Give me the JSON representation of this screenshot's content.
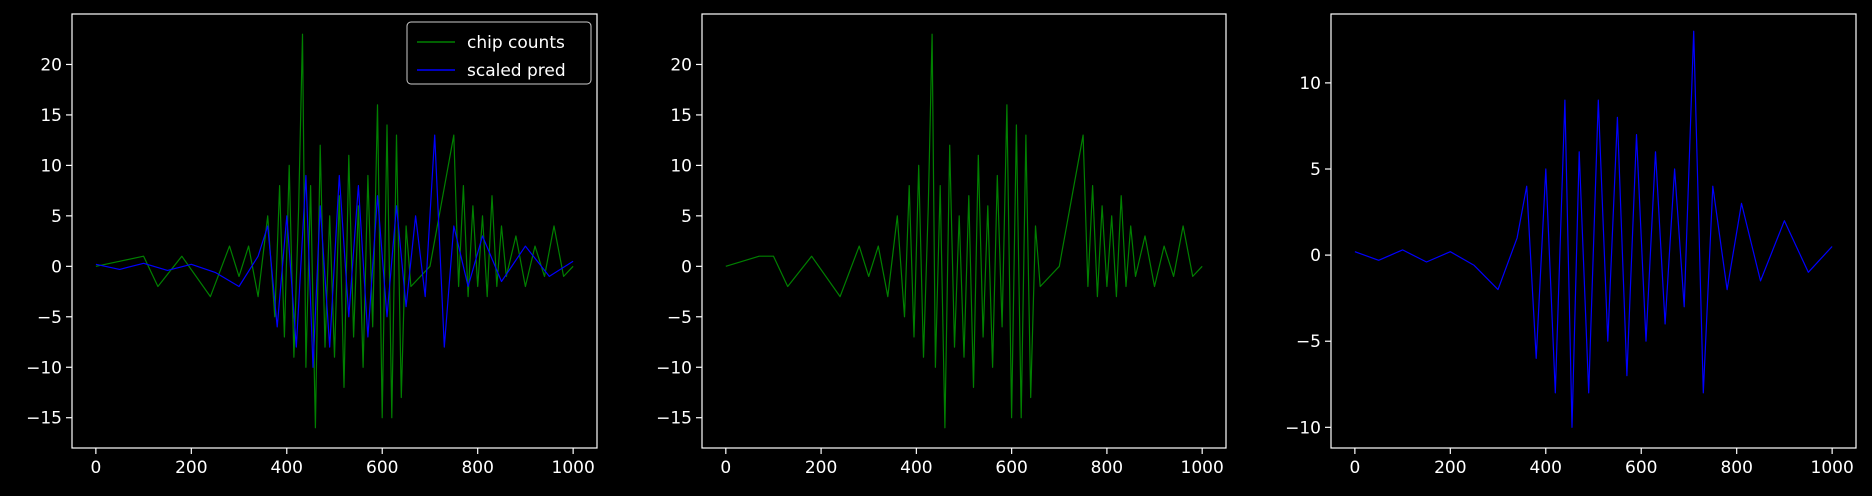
{
  "figure": {
    "background": "#000000",
    "foreground": "#ffffff"
  },
  "legend": {
    "location": "top-right",
    "entries": [
      {
        "label": "chip counts",
        "color": "#008000"
      },
      {
        "label": "scaled pred",
        "color": "#0000ff"
      }
    ]
  },
  "chart_data": [
    {
      "type": "line",
      "title": "",
      "xlabel": "",
      "ylabel": "",
      "xlim": [
        -50,
        1050
      ],
      "ylim": [
        -18,
        25
      ],
      "xticks": [
        0,
        200,
        400,
        600,
        800,
        1000
      ],
      "yticks": [
        -15,
        -10,
        -5,
        0,
        5,
        10,
        15,
        20
      ],
      "ytick_labels": [
        "−15",
        "−10",
        "−5",
        "0",
        "5",
        "10",
        "15",
        "20"
      ],
      "grid": false,
      "legend": true,
      "series": [
        {
          "name": "chip counts",
          "color": "#008000",
          "x": [
            0,
            100,
            130,
            180,
            240,
            280,
            300,
            320,
            340,
            360,
            375,
            385,
            395,
            405,
            415,
            425,
            433,
            440,
            450,
            460,
            470,
            480,
            490,
            500,
            510,
            520,
            530,
            540,
            550,
            560,
            570,
            580,
            590,
            600,
            610,
            620,
            630,
            640,
            650,
            660,
            700,
            750,
            760,
            770,
            780,
            790,
            800,
            810,
            820,
            830,
            840,
            850,
            860,
            880,
            900,
            920,
            940,
            960,
            980,
            1000
          ],
          "y": [
            0,
            1,
            -2,
            1,
            -3,
            2,
            -1,
            2,
            -3,
            5,
            -5,
            8,
            -7,
            10,
            -9,
            6,
            23,
            -10,
            8,
            -16,
            12,
            -8,
            5,
            -9,
            7,
            -12,
            11,
            -7,
            6,
            -10,
            9,
            -6,
            16,
            -15,
            14,
            -15,
            13,
            -13,
            4,
            -2,
            0,
            13,
            -2,
            8,
            -3,
            6,
            -2,
            5,
            -3,
            7,
            -2,
            4,
            -1,
            3,
            -2,
            2,
            -1,
            4,
            -1,
            0
          ]
        },
        {
          "name": "scaled pred",
          "color": "#0000ff",
          "x": [
            0,
            50,
            100,
            150,
            200,
            250,
            300,
            340,
            360,
            380,
            400,
            420,
            440,
            455,
            470,
            490,
            510,
            530,
            550,
            570,
            590,
            610,
            630,
            650,
            670,
            690,
            710,
            730,
            750,
            780,
            810,
            850,
            900,
            950,
            1000
          ],
          "y": [
            0.2,
            -0.3,
            0.3,
            -0.4,
            0.2,
            -0.6,
            -2,
            1,
            4,
            -6,
            5,
            -8,
            9,
            -10,
            6,
            -8,
            9,
            -5,
            8,
            -7,
            7,
            -5,
            6,
            -4,
            5,
            -3,
            13,
            -8,
            4,
            -2,
            3,
            -1.5,
            2,
            -1,
            0.5
          ]
        }
      ]
    },
    {
      "type": "line",
      "title": "",
      "xlabel": "",
      "ylabel": "",
      "xlim": [
        -50,
        1050
      ],
      "ylim": [
        -18,
        25
      ],
      "xticks": [
        0,
        200,
        400,
        600,
        800,
        1000
      ],
      "yticks": [
        -15,
        -10,
        -5,
        0,
        5,
        10,
        15,
        20
      ],
      "ytick_labels": [
        "−15",
        "−10",
        "−5",
        "0",
        "5",
        "10",
        "15",
        "20"
      ],
      "grid": false,
      "legend": false,
      "series": [
        {
          "color": "#008000",
          "x": [
            0,
            70,
            100,
            130,
            180,
            240,
            280,
            300,
            320,
            340,
            360,
            375,
            385,
            395,
            405,
            415,
            425,
            433,
            440,
            450,
            460,
            470,
            480,
            490,
            500,
            510,
            520,
            530,
            540,
            550,
            560,
            570,
            580,
            590,
            600,
            610,
            620,
            630,
            640,
            650,
            660,
            700,
            750,
            760,
            770,
            780,
            790,
            800,
            810,
            820,
            830,
            840,
            850,
            860,
            880,
            900,
            920,
            940,
            960,
            980,
            1000
          ],
          "y": [
            0,
            1,
            1,
            -2,
            1,
            -3,
            2,
            -1,
            2,
            -3,
            5,
            -5,
            8,
            -7,
            10,
            -9,
            6,
            23,
            -10,
            8,
            -16,
            12,
            -8,
            5,
            -9,
            7,
            -12,
            11,
            -7,
            6,
            -10,
            9,
            -6,
            16,
            -15,
            14,
            -15,
            13,
            -13,
            4,
            -2,
            0,
            13,
            -2,
            8,
            -3,
            6,
            -2,
            5,
            -3,
            7,
            -2,
            4,
            -1,
            3,
            -2,
            2,
            -1,
            4,
            -1,
            0
          ]
        }
      ]
    },
    {
      "type": "line",
      "title": "",
      "xlabel": "",
      "ylabel": "",
      "xlim": [
        -50,
        1050
      ],
      "ylim": [
        -11.2,
        14
      ],
      "xticks": [
        0,
        200,
        400,
        600,
        800,
        1000
      ],
      "yticks": [
        -10,
        -5,
        0,
        5,
        10
      ],
      "ytick_labels": [
        "−10",
        "−5",
        "0",
        "5",
        "10"
      ],
      "grid": false,
      "legend": false,
      "series": [
        {
          "color": "#0000ff",
          "x": [
            0,
            50,
            100,
            150,
            200,
            250,
            300,
            340,
            360,
            380,
            400,
            420,
            440,
            455,
            470,
            490,
            510,
            530,
            550,
            570,
            590,
            610,
            630,
            650,
            670,
            690,
            710,
            730,
            750,
            780,
            810,
            850,
            900,
            950,
            1000
          ],
          "y": [
            0.2,
            -0.3,
            0.3,
            -0.4,
            0.2,
            -0.6,
            -2,
            1,
            4,
            -6,
            5,
            -8,
            9,
            -10,
            6,
            -8,
            9,
            -5,
            8,
            -7,
            7,
            -5,
            6,
            -4,
            5,
            -3,
            13,
            -8,
            4,
            -2,
            3,
            -1.5,
            2,
            -1,
            0.5
          ]
        }
      ]
    }
  ]
}
